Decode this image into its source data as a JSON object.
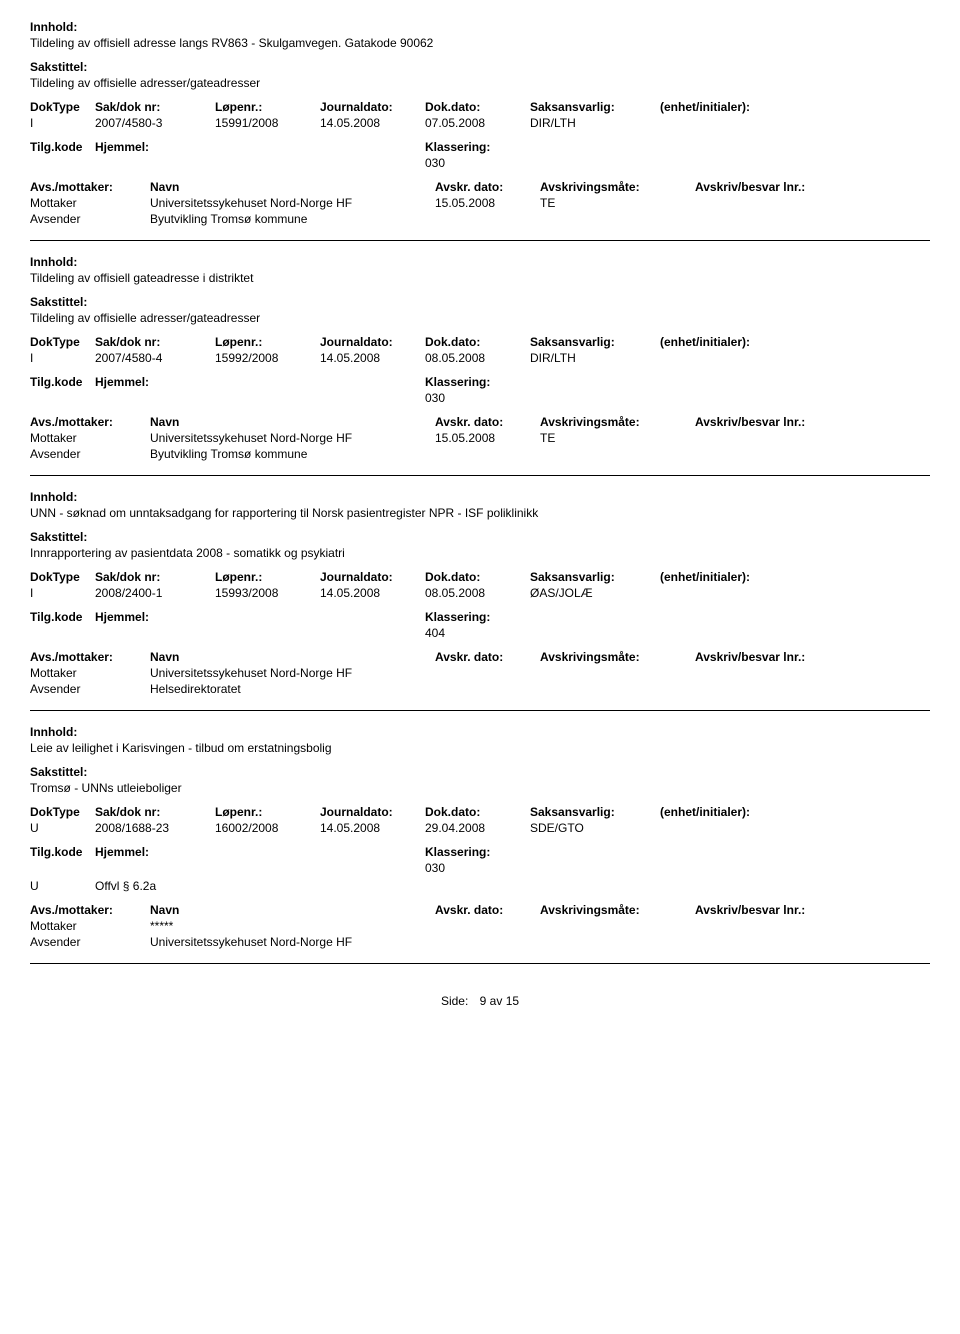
{
  "labels": {
    "innhold": "Innhold:",
    "sakstittel": "Sakstittel:",
    "doktype": "DokType",
    "sakdok": "Sak/dok nr:",
    "lopenr": "Løpenr.:",
    "journaldato": "Journaldato:",
    "dokdato": "Dok.dato:",
    "saksansvarlig": "Saksansvarlig:",
    "enhet": "(enhet/initialer):",
    "tilgkode": "Tilg.kode",
    "hjemmel": "Hjemmel:",
    "klassering": "Klassering:",
    "avsmottaker": "Avs./mottaker:",
    "navn": "Navn",
    "avskrdato": "Avskr. dato:",
    "avskrivingsmate": "Avskrivingsmåte:",
    "avskrivbesvar": "Avskriv/besvar lnr.:",
    "mottaker": "Mottaker",
    "avsender": "Avsender"
  },
  "records": [
    {
      "innhold": "Tildeling av offisiell adresse langs RV863 - Skulgamvegen. Gatakode 90062",
      "sakstittel": "Tildeling av offisielle adresser/gateadresser",
      "doktype": "I",
      "sakdok": "2007/4580-3",
      "lopenr": "15991/2008",
      "journaldato": "14.05.2008",
      "dokdato": "07.05.2008",
      "saksansvarlig": "DIR/LTH",
      "enhet": "",
      "tilgkode": "",
      "hjemmel": "",
      "klassering": "030",
      "parties": [
        {
          "role": "Mottaker",
          "name": "Universitetssykehuset Nord-Norge HF",
          "avskrdato": "15.05.2008",
          "avskrmate": "TE"
        },
        {
          "role": "Avsender",
          "name": "Byutvikling Tromsø kommune",
          "avskrdato": "",
          "avskrmate": ""
        }
      ]
    },
    {
      "innhold": "Tildeling av offisiell gateadresse i distriktet",
      "sakstittel": "Tildeling av offisielle adresser/gateadresser",
      "doktype": "I",
      "sakdok": "2007/4580-4",
      "lopenr": "15992/2008",
      "journaldato": "14.05.2008",
      "dokdato": "08.05.2008",
      "saksansvarlig": "DIR/LTH",
      "enhet": "",
      "tilgkode": "",
      "hjemmel": "",
      "klassering": "030",
      "parties": [
        {
          "role": "Mottaker",
          "name": "Universitetssykehuset Nord-Norge HF",
          "avskrdato": "15.05.2008",
          "avskrmate": "TE"
        },
        {
          "role": "Avsender",
          "name": "Byutvikling Tromsø kommune",
          "avskrdato": "",
          "avskrmate": ""
        }
      ]
    },
    {
      "innhold": "UNN - søknad om unntaksadgang for rapportering til Norsk pasientregister NPR - ISF poliklinikk",
      "sakstittel": "Innrapportering av pasientdata 2008 - somatikk og psykiatri",
      "doktype": "I",
      "sakdok": "2008/2400-1",
      "lopenr": "15993/2008",
      "journaldato": "14.05.2008",
      "dokdato": "08.05.2008",
      "saksansvarlig": "ØAS/JOLÆ",
      "enhet": "",
      "tilgkode": "",
      "hjemmel": "",
      "klassering": "404",
      "parties": [
        {
          "role": "Mottaker",
          "name": "Universitetssykehuset Nord-Norge HF",
          "avskrdato": "",
          "avskrmate": ""
        },
        {
          "role": "Avsender",
          "name": "Helsedirektoratet",
          "avskrdato": "",
          "avskrmate": ""
        }
      ]
    },
    {
      "innhold": "Leie av leilighet i Karisvingen - tilbud om erstatningsbolig",
      "sakstittel": "Tromsø - UNNs utleieboliger",
      "doktype": "U",
      "sakdok": "2008/1688-23",
      "lopenr": "16002/2008",
      "journaldato": "14.05.2008",
      "dokdato": "29.04.2008",
      "saksansvarlig": "SDE/GTO",
      "enhet": "",
      "tilgkode": "U",
      "hjemmel": "Offvl § 6.2a",
      "klassering": "030",
      "parties": [
        {
          "role": "Mottaker",
          "name": "*****",
          "avskrdato": "",
          "avskrmate": ""
        },
        {
          "role": "Avsender",
          "name": "Universitetssykehuset Nord-Norge HF",
          "avskrdato": "",
          "avskrmate": ""
        }
      ]
    }
  ],
  "footer": {
    "side": "Side:",
    "page": "9",
    "av": "av",
    "total": "15"
  }
}
